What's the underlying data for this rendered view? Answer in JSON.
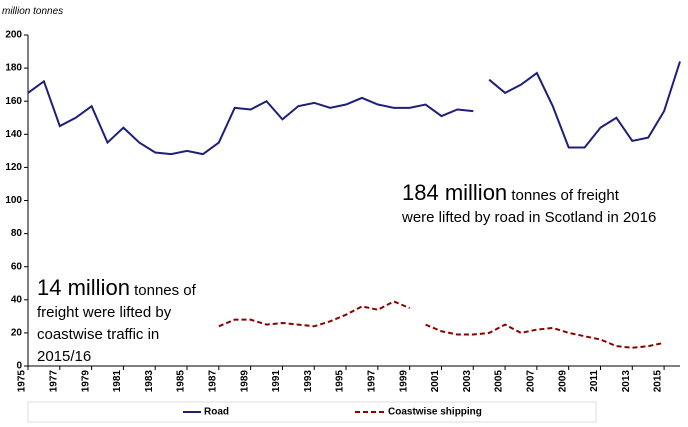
{
  "chart_data": {
    "type": "line",
    "y_axis_label": "million tonnes",
    "x": [
      1975,
      1976,
      1977,
      1978,
      1979,
      1980,
      1981,
      1982,
      1983,
      1984,
      1985,
      1986,
      1987,
      1988,
      1989,
      1990,
      1991,
      1992,
      1993,
      1994,
      1995,
      1996,
      1997,
      1998,
      1999,
      2000,
      2001,
      2002,
      2003,
      2004,
      2005,
      2006,
      2007,
      2008,
      2009,
      2010,
      2011,
      2012,
      2013,
      2014,
      2015,
      2016
    ],
    "xlim": [
      1975,
      2016
    ],
    "xticks": [
      1975,
      1977,
      1979,
      1981,
      1983,
      1985,
      1987,
      1989,
      1991,
      1993,
      1995,
      1997,
      1999,
      2001,
      2003,
      2005,
      2007,
      2009,
      2011,
      2013,
      2015
    ],
    "ylim": [
      0,
      200
    ],
    "yticks": [
      0,
      20,
      40,
      60,
      80,
      100,
      120,
      140,
      160,
      180,
      200
    ],
    "series": [
      {
        "name": "Road",
        "color": "#1f1f7a",
        "dash": false,
        "breaks_after": [
          2003
        ],
        "values": [
          165,
          172,
          145,
          150,
          157,
          135,
          144,
          135,
          129,
          128,
          130,
          128,
          135,
          156,
          155,
          160,
          149,
          157,
          159,
          156,
          158,
          162,
          158,
          156,
          156,
          158,
          151,
          155,
          154,
          173,
          165,
          170,
          177,
          157,
          132,
          132,
          144,
          150,
          136,
          138,
          154,
          184
        ]
      },
      {
        "name": "Coastwise shipping",
        "color": "#8b0000",
        "dash": true,
        "breaks_after": [
          1999
        ],
        "values": [
          null,
          null,
          null,
          null,
          null,
          null,
          null,
          null,
          null,
          null,
          null,
          null,
          24,
          28,
          28,
          25,
          26,
          25,
          24,
          27,
          31,
          36,
          34,
          39,
          35,
          25,
          21,
          19,
          19,
          20,
          25,
          20,
          22,
          23,
          20,
          18,
          16,
          12,
          11,
          12,
          14,
          null
        ]
      }
    ],
    "annotations": [
      {
        "big": "184 million",
        "lines": [
          " tonnes of freight",
          "were lifted by road in Scotland in 2016"
        ]
      },
      {
        "big": "14 million",
        "lines": [
          " tonnes of",
          "freight were lifted by",
          "coastwise traffic in",
          "2015/16"
        ]
      }
    ]
  }
}
